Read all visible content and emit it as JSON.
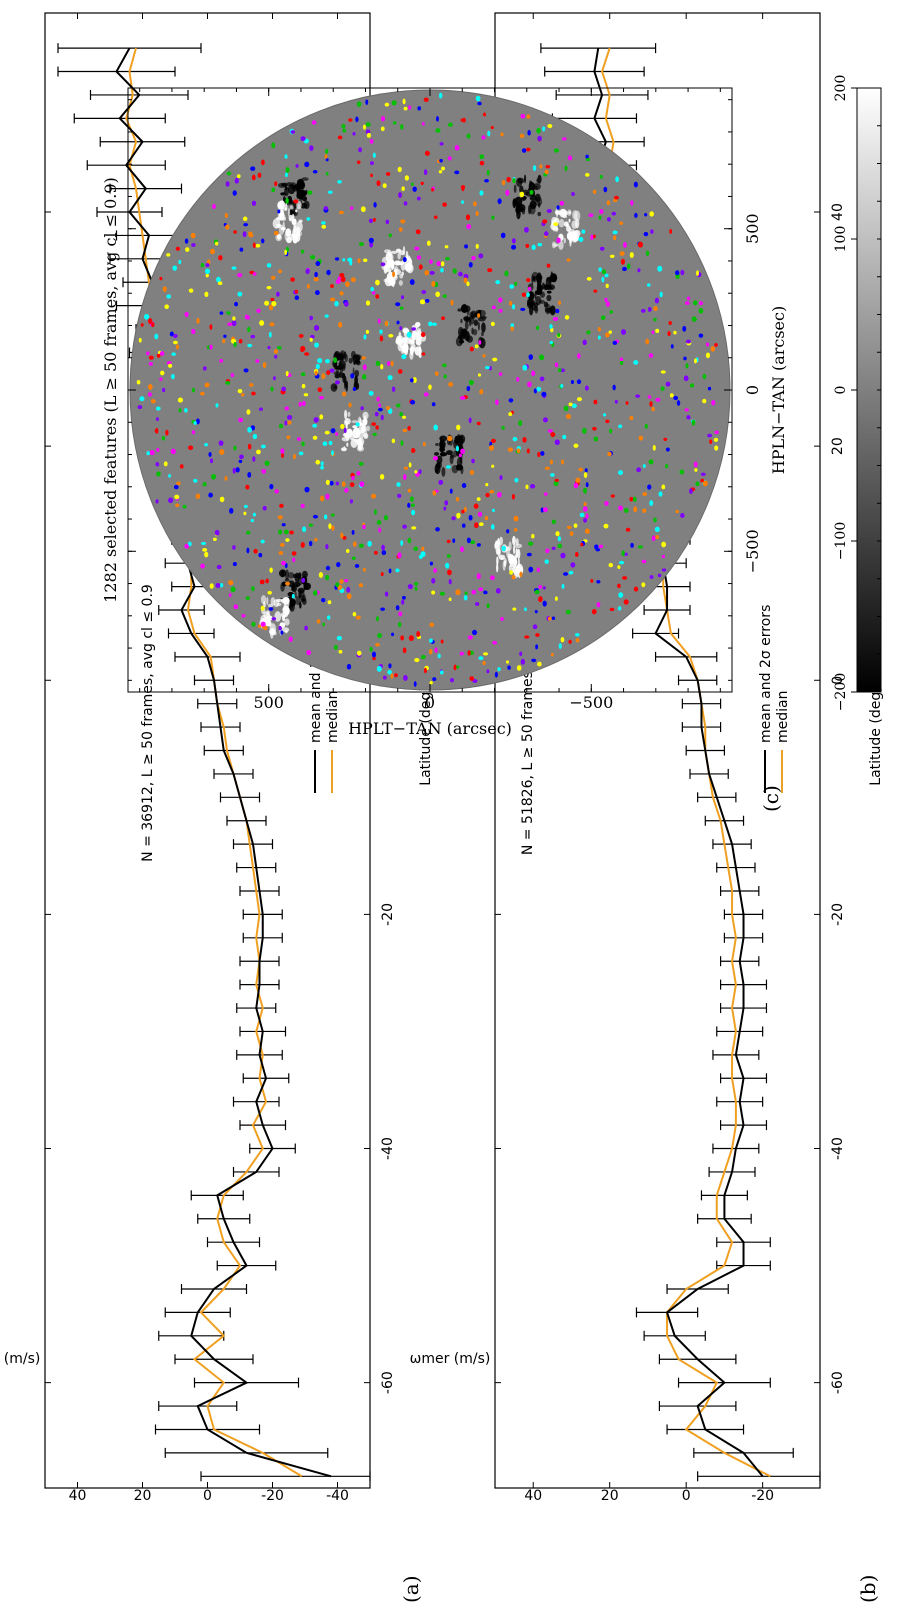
{
  "chart_data": [
    {
      "id": "a",
      "type": "line",
      "panel_label": "(a)",
      "title": "N = 36912, L ≥ 50 frames, avg cl ≤ 0.9",
      "xlabel": "Latitude (deg)",
      "ylabel": "ωmer (m/s)",
      "xlim": [
        -69,
        57
      ],
      "ylim": [
        -50,
        50
      ],
      "x_ticks": [
        -60,
        -40,
        -20,
        0,
        20,
        40
      ],
      "y_ticks": [
        -40,
        -20,
        0,
        20,
        40
      ],
      "legend": {
        "position": "center-right",
        "entries": [
          "mean and 2σ errors",
          "median"
        ]
      },
      "colors": {
        "mean": "#000000",
        "median": "#f0a020"
      },
      "x": [
        -68,
        -66,
        -64,
        -62,
        -60,
        -58,
        -56,
        -54,
        -52,
        -50,
        -48,
        -46,
        -44,
        -42,
        -40,
        -38,
        -36,
        -34,
        -32,
        -30,
        -28,
        -26,
        -24,
        -22,
        -20,
        -18,
        -16,
        -14,
        -12,
        -10,
        -8,
        -6,
        -4,
        -2,
        0,
        2,
        4,
        6,
        8,
        10,
        12,
        14,
        16,
        18,
        20,
        22,
        24,
        26,
        28,
        30,
        32,
        34,
        36,
        38,
        40,
        42,
        44,
        46,
        48,
        50,
        52,
        54
      ],
      "series": [
        {
          "name": "mean and 2σ errors",
          "values": [
            -38,
            -12,
            0,
            3,
            -12,
            -2,
            5,
            3,
            -2,
            -12,
            -8,
            -5,
            -3,
            -15,
            -20,
            -17,
            -15,
            -18,
            -16,
            -17,
            -15,
            -16,
            -16,
            -17,
            -17,
            -16,
            -15,
            -14,
            -12,
            -10,
            -8,
            -5,
            -4,
            -3,
            -2,
            0,
            5,
            8,
            4,
            6,
            4,
            7,
            8,
            12,
            10,
            15,
            12,
            14,
            16,
            14,
            19,
            17,
            20,
            18,
            24,
            19,
            25,
            20,
            27,
            21,
            28,
            24
          ],
          "errors": [
            40,
            25,
            16,
            12,
            16,
            12,
            10,
            10,
            10,
            9,
            8,
            8,
            8,
            7,
            7,
            7,
            7,
            7,
            7,
            7,
            6,
            6,
            6,
            6,
            6,
            6,
            6,
            6,
            6,
            6,
            6,
            6,
            6,
            6,
            6,
            10,
            7,
            7,
            7,
            7,
            7,
            7,
            7,
            7,
            7,
            7,
            7,
            8,
            8,
            8,
            9,
            9,
            10,
            10,
            10,
            11,
            12,
            13,
            14,
            15,
            18,
            22
          ]
        },
        {
          "name": "median",
          "values": [
            -29,
            -17,
            -2,
            0,
            -5,
            4,
            -5,
            2,
            -5,
            -10,
            -5,
            -3,
            -5,
            -12,
            -17,
            -14,
            -18,
            -16,
            -17,
            -15,
            -17,
            -15,
            -16,
            -15,
            -16,
            -15,
            -14,
            -13,
            -12,
            -10,
            -8,
            -6,
            -5,
            -3,
            -2,
            -1,
            4,
            6,
            5,
            5,
            5,
            6,
            9,
            10,
            11,
            13,
            12,
            14,
            15,
            16,
            17,
            18,
            19,
            20,
            21,
            22,
            24,
            22,
            25,
            23,
            24,
            22
          ]
        }
      ]
    },
    {
      "id": "b",
      "type": "line",
      "panel_label": "(b)",
      "title": "N = 51826, L ≥ 50 frames, avg cl ≤ 1",
      "xlabel": "Latitude (deg)",
      "ylabel": "ωmer (m/s)",
      "xlim": [
        -69,
        57
      ],
      "ylim": [
        -35,
        50
      ],
      "x_ticks": [
        -60,
        -40,
        -20,
        0,
        20,
        40
      ],
      "y_ticks": [
        -40,
        -20,
        0,
        20,
        40
      ],
      "legend": {
        "position": "center-right",
        "entries": [
          "mean and 2σ errors",
          "median"
        ]
      },
      "colors": {
        "mean": "#000000",
        "median": "#f0a020"
      },
      "x": [
        -68,
        -66,
        -64,
        -62,
        -60,
        -58,
        -56,
        -54,
        -52,
        -50,
        -48,
        -46,
        -44,
        -42,
        -40,
        -38,
        -36,
        -34,
        -32,
        -30,
        -28,
        -26,
        -24,
        -22,
        -20,
        -18,
        -16,
        -14,
        -12,
        -10,
        -8,
        -6,
        -4,
        -2,
        0,
        2,
        4,
        6,
        8,
        10,
        12,
        14,
        16,
        18,
        20,
        22,
        24,
        26,
        28,
        30,
        32,
        34,
        36,
        38,
        40,
        42,
        44,
        46,
        48,
        50,
        52,
        54
      ],
      "series": [
        {
          "name": "mean and 2σ errors",
          "values": [
            -20,
            -15,
            -5,
            -3,
            -10,
            -3,
            3,
            5,
            -3,
            -15,
            -15,
            -10,
            -10,
            -12,
            -13,
            -15,
            -14,
            -15,
            -13,
            -14,
            -15,
            -15,
            -14,
            -15,
            -15,
            -14,
            -13,
            -12,
            -10,
            -8,
            -6,
            -5,
            -4,
            -4,
            -3,
            0,
            8,
            5,
            5,
            6,
            5,
            7,
            8,
            10,
            11,
            12,
            13,
            14,
            15,
            16,
            17,
            18,
            20,
            19,
            22,
            20,
            23,
            21,
            24,
            22,
            24,
            23
          ],
          "errors": [
            17,
            13,
            10,
            10,
            12,
            10,
            8,
            8,
            8,
            7,
            7,
            7,
            6,
            6,
            6,
            6,
            6,
            6,
            6,
            6,
            6,
            6,
            5,
            5,
            5,
            5,
            5,
            5,
            5,
            5,
            5,
            5,
            5,
            5,
            5,
            8,
            6,
            6,
            6,
            6,
            6,
            6,
            6,
            6,
            6,
            6,
            6,
            6,
            7,
            7,
            7,
            7,
            8,
            8,
            8,
            9,
            10,
            10,
            11,
            12,
            13,
            15
          ]
        },
        {
          "name": "median",
          "values": [
            -22,
            -10,
            0,
            -5,
            -8,
            2,
            5,
            5,
            0,
            -10,
            -12,
            -8,
            -8,
            -10,
            -12,
            -13,
            -13,
            -12,
            -12,
            -13,
            -12,
            -13,
            -12,
            -13,
            -12,
            -12,
            -11,
            -10,
            -9,
            -7,
            -6,
            -5,
            -5,
            -4,
            -3,
            -1,
            4,
            5,
            6,
            6,
            6,
            7,
            9,
            10,
            11,
            12,
            13,
            15,
            15,
            16,
            17,
            17,
            18,
            18,
            20,
            19,
            20,
            19,
            21,
            20,
            22,
            20
          ]
        }
      ]
    },
    {
      "id": "c",
      "type": "scatter",
      "panel_label": "(c)",
      "title": "1282 selected features (L ≥ 50 frames, avg cl ≤ 0.9)",
      "xlabel": "HPLN−TAN (arcsec)",
      "ylabel": "HPLT−TAN (arcsec)",
      "xlim": [
        -930,
        1030
      ],
      "ylim": [
        -930,
        930
      ],
      "x_ticks": [
        -500,
        0,
        500
      ],
      "y_ticks": [
        -500,
        0,
        500
      ],
      "colorbar": {
        "min": -200,
        "max": 200,
        "ticks": [
          -200,
          -100,
          0,
          100,
          200
        ]
      },
      "tick_labels": {
        "m200": "−200",
        "m100": "−100",
        "zero": "0",
        "p100": "100",
        "p200": "200",
        "m500": "−500",
        "p500": "500"
      },
      "feature_count": 1282,
      "feature_colors": [
        "#ff0000",
        "#00c000",
        "#0000ff",
        "#ffff00",
        "#00ffff",
        "#ff00ff",
        "#ff8000",
        "#8000ff"
      ],
      "magnetic_regions": [
        {
          "x": 150,
          "y": 60,
          "polarity": "positive"
        },
        {
          "x": 200,
          "y": -130,
          "polarity": "negative"
        },
        {
          "x": -130,
          "y": 230,
          "polarity": "positive"
        },
        {
          "x": 60,
          "y": 260,
          "polarity": "negative"
        },
        {
          "x": -620,
          "y": 420,
          "polarity": "negative"
        },
        {
          "x": -700,
          "y": 480,
          "polarity": "positive"
        },
        {
          "x": -520,
          "y": -240,
          "polarity": "positive"
        },
        {
          "x": 600,
          "y": -300,
          "polarity": "negative"
        },
        {
          "x": 500,
          "y": -420,
          "polarity": "positive"
        },
        {
          "x": 600,
          "y": 420,
          "polarity": "negative"
        },
        {
          "x": 520,
          "y": 440,
          "polarity": "positive"
        },
        {
          "x": -200,
          "y": -60,
          "polarity": "negative"
        },
        {
          "x": 380,
          "y": 100,
          "polarity": "positive"
        },
        {
          "x": 300,
          "y": -350,
          "polarity": "negative"
        }
      ]
    }
  ]
}
